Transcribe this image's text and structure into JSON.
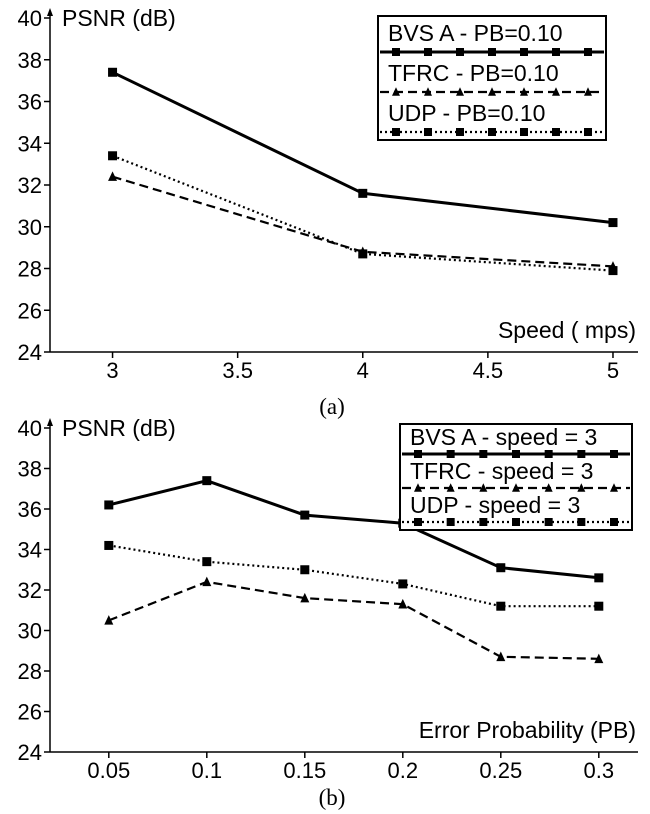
{
  "chart_data": [
    {
      "type": "line",
      "panel": "(a)",
      "ylabel": "PSNR (dB)",
      "xlabel": "Speed ( mps)",
      "x": [
        3,
        4,
        5
      ],
      "xticks": [
        "3",
        "3.5",
        "4",
        "4.5",
        "5"
      ],
      "xtick_values": [
        3,
        3.5,
        4,
        4.5,
        5
      ],
      "xlim": [
        2.75,
        5.1
      ],
      "yticks": [
        "24",
        "26",
        "28",
        "30",
        "32",
        "34",
        "36",
        "38",
        "40"
      ],
      "ylim": [
        24,
        40
      ],
      "grid": false,
      "legend_position": "top-right",
      "series": [
        {
          "name": "BVS A - PB=0.10",
          "style": "solid",
          "marker": "square",
          "values": [
            37.4,
            31.6,
            30.2
          ]
        },
        {
          "name": "TFRC - PB=0.10",
          "style": "dashed",
          "marker": "triangle",
          "values": [
            32.4,
            28.8,
            28.1
          ]
        },
        {
          "name": "UDP - PB=0.10",
          "style": "dotted",
          "marker": "square",
          "values": [
            33.4,
            28.7,
            27.9
          ]
        }
      ]
    },
    {
      "type": "line",
      "panel": "(b)",
      "ylabel": "PSNR (dB)",
      "xlabel": "Error Probability (PB)",
      "x": [
        0.05,
        0.1,
        0.15,
        0.2,
        0.25,
        0.3
      ],
      "xticks": [
        "0.05",
        "0.1",
        "0.15",
        "0.2",
        "0.25",
        "0.3"
      ],
      "xtick_values": [
        0.05,
        0.1,
        0.15,
        0.2,
        0.25,
        0.3
      ],
      "xlim": [
        0.02,
        0.32
      ],
      "yticks": [
        "24",
        "26",
        "28",
        "30",
        "32",
        "34",
        "36",
        "38",
        "40"
      ],
      "ylim": [
        24,
        40
      ],
      "grid": false,
      "legend_position": "top-right",
      "series": [
        {
          "name": "BVS A - speed = 3",
          "style": "solid",
          "marker": "square",
          "values": [
            36.2,
            37.4,
            35.7,
            35.3,
            33.1,
            32.6
          ]
        },
        {
          "name": "TFRC - speed = 3",
          "style": "dashed",
          "marker": "triangle",
          "values": [
            30.5,
            32.4,
            31.6,
            31.3,
            28.7,
            28.6
          ]
        },
        {
          "name": "UDP - speed = 3",
          "style": "dotted",
          "marker": "square",
          "values": [
            34.2,
            33.4,
            33.0,
            32.3,
            31.2,
            31.2
          ]
        }
      ]
    }
  ]
}
